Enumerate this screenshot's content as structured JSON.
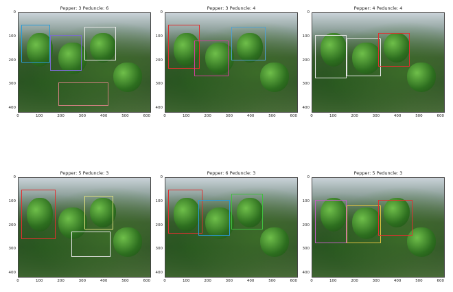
{
  "panels": [
    {
      "title": "Pepper: 3 Peduncle: 6"
    },
    {
      "title": "Pepper: 3 Peduncle: 4"
    },
    {
      "title": "Pepper: 4 Peduncle: 4"
    },
    {
      "title": "Pepper: 5 Peduncle: 3"
    },
    {
      "title": "Pepper: 6 Peduncle: 3"
    },
    {
      "title": "Pepper: 5 Peduncle: 3"
    }
  ],
  "y_ticks": [
    "0",
    "100",
    "200",
    "300",
    "400"
  ],
  "x_ticks": [
    "0",
    "100",
    "200",
    "300",
    "400",
    "500",
    "600"
  ]
}
